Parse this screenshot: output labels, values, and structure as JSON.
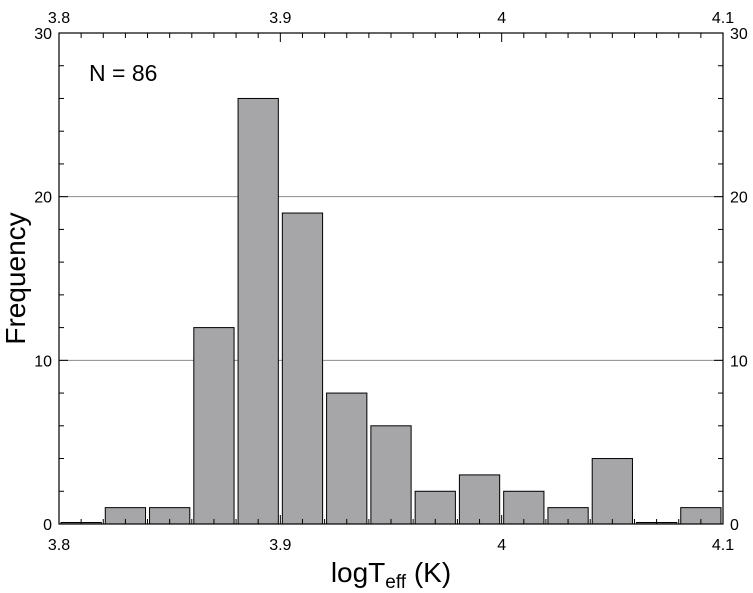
{
  "chart_data": {
    "type": "bar",
    "title": "",
    "annotation": "N = 86",
    "xlabel": {
      "main": "logT",
      "sub": "eff",
      "unit": " (K)"
    },
    "ylabel": "Frequency",
    "xlim": [
      3.8,
      4.1
    ],
    "ylim": [
      0,
      30
    ],
    "x_ticks": [
      3.8,
      3.9,
      4.0,
      4.1
    ],
    "x_tick_labels": [
      "3.8",
      "3.9",
      "4",
      "4.1"
    ],
    "y_ticks": [
      0,
      10,
      20,
      30
    ],
    "y_tick_labels": [
      "0",
      "10",
      "20",
      "30"
    ],
    "grid": "horizontal",
    "bar_color": "#a6a6a9",
    "bin_width": 0.02,
    "bin_starts": [
      3.8,
      3.82,
      3.84,
      3.86,
      3.88,
      3.9,
      3.92,
      3.94,
      3.96,
      3.98,
      4.0,
      4.02,
      4.04,
      4.06,
      4.08
    ],
    "values": [
      0,
      1,
      1,
      12,
      26,
      19,
      8,
      6,
      2,
      3,
      2,
      1,
      4,
      0,
      1
    ]
  }
}
